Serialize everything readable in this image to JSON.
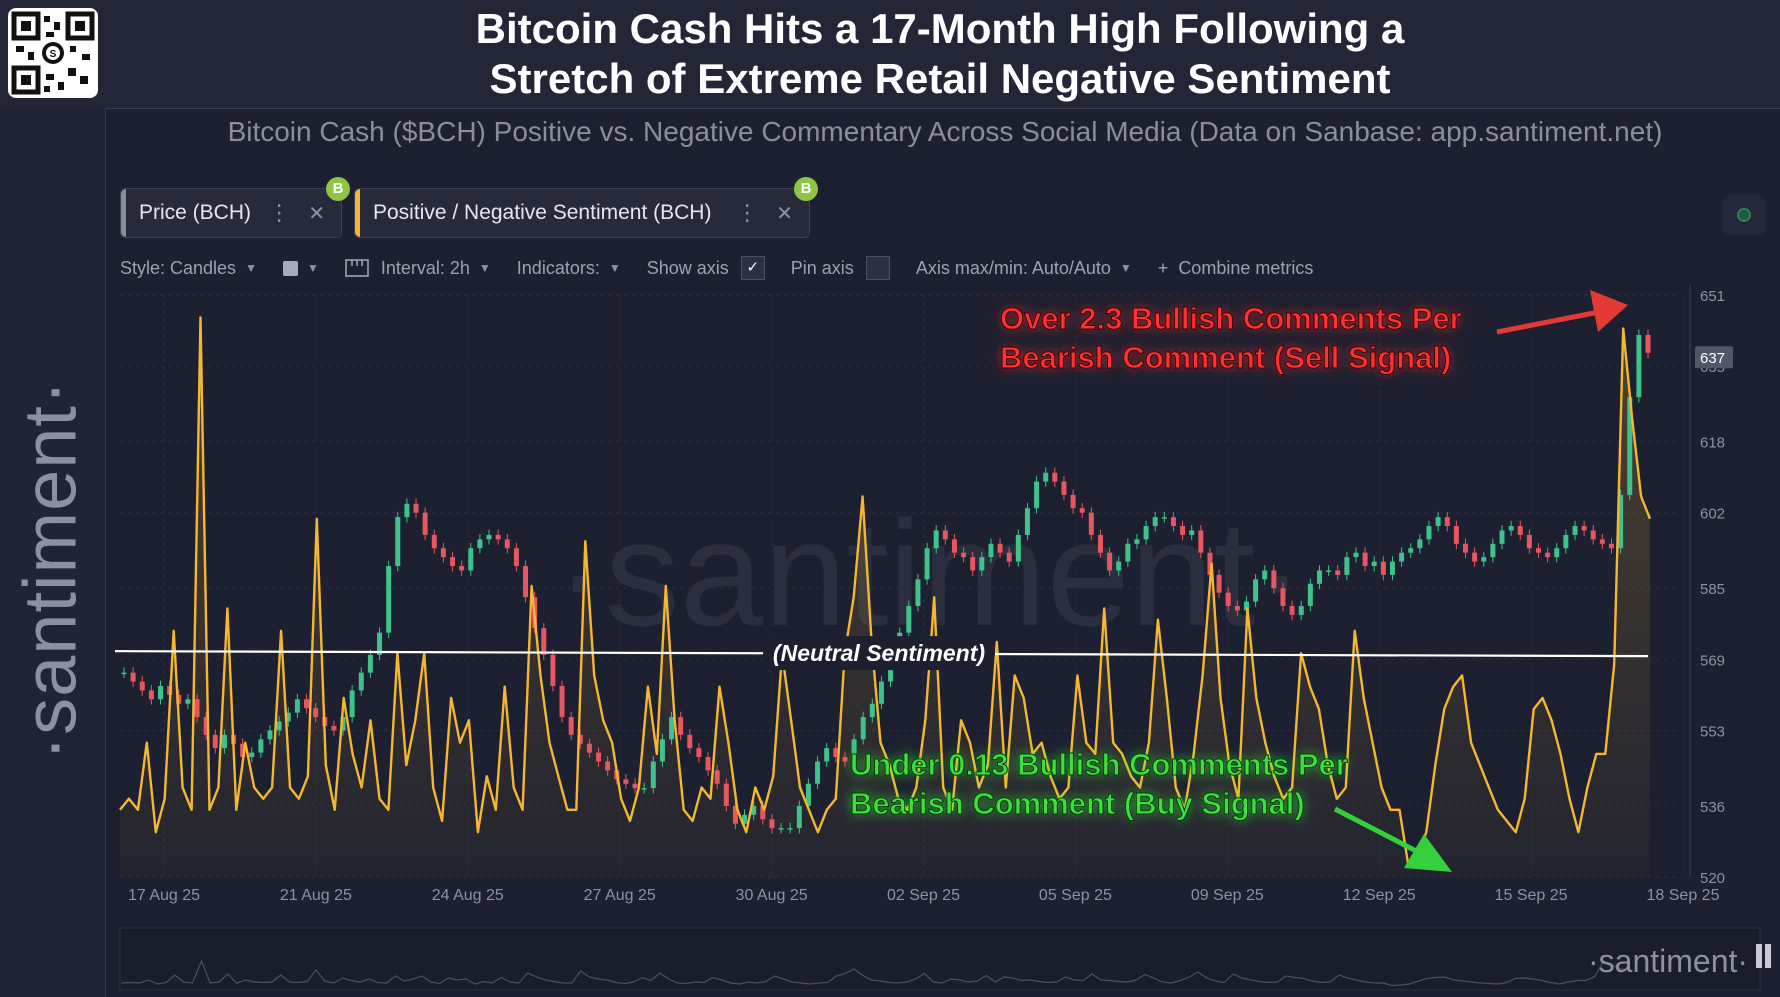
{
  "header": {
    "title_line1": "Bitcoin Cash Hits a 17-Month High Following a",
    "title_line2": "Stretch of Extreme Retail Negative Sentiment",
    "subtitle": "Bitcoin Cash ($BCH) Positive vs. Negative Commentary Across Social Media (Data on Sanbase: app.santiment.net)",
    "qr_icon": "qr-code-icon"
  },
  "sidebar": {
    "logo": "·santiment·"
  },
  "metrics": [
    {
      "label": "Price (BCH)",
      "color": "#8a8f9c",
      "badge": "B"
    },
    {
      "label": "Positive / Negative Sentiment (BCH)",
      "color": "#f5b731",
      "badge": "B"
    }
  ],
  "toolbar": {
    "style": "Style: Candles",
    "interval": "Interval: 2h",
    "indicators": "Indicators:",
    "show_axis": "Show axis",
    "pin_axis": "Pin axis",
    "axis_maxmin": "Axis max/min: Auto/Auto",
    "combine": "Combine metrics",
    "plus": "+",
    "check": "✓"
  },
  "chart_data": {
    "type": "line",
    "title": "Bitcoin Cash Hits a 17-Month High Following a Stretch of Extreme Retail Negative Sentiment",
    "x_tick_labels": [
      "17 Aug 25",
      "21 Aug 25",
      "24 Aug 25",
      "27 Aug 25",
      "30 Aug 25",
      "02 Sep 25",
      "05 Sep 25",
      "09 Sep 25",
      "12 Sep 25",
      "15 Sep 25",
      "18 Sep 25"
    ],
    "y_axis": {
      "ticks": [
        651,
        635,
        618,
        602,
        585,
        569,
        553,
        536,
        520
      ],
      "range": [
        520,
        651
      ],
      "current_price_label": "637"
    },
    "series": [
      {
        "name": "Price (BCH)",
        "style": "candles",
        "color_up": "#3fc28c",
        "color_down": "#e8575f",
        "values": [
          566,
          564,
          562,
          560,
          563,
          561,
          559,
          560,
          556,
          552,
          549,
          552,
          550,
          547,
          548,
          551,
          553,
          555,
          557,
          560,
          558,
          556,
          554,
          553,
          556,
          562,
          566,
          570,
          575,
          590,
          601,
          604,
          602,
          597,
          594,
          592,
          590,
          589,
          594,
          596,
          597,
          596,
          594,
          590,
          583,
          576,
          570,
          563,
          556,
          552,
          550,
          548,
          546,
          544,
          542,
          541,
          540,
          540,
          546,
          551,
          556,
          552,
          549,
          547,
          544,
          541,
          536,
          532,
          534,
          536,
          533,
          531,
          531,
          531,
          536,
          541,
          546,
          549,
          547,
          546,
          551,
          556,
          559,
          564,
          569,
          575,
          581,
          587,
          594,
          598,
          596,
          593,
          592,
          589,
          592,
          595,
          593,
          591,
          597,
          603,
          609,
          611,
          609,
          606,
          603,
          602,
          597,
          593,
          589,
          591,
          595,
          596,
          599,
          601,
          601,
          599,
          597,
          598,
          593,
          588,
          584,
          581,
          580,
          582,
          587,
          589,
          585,
          581,
          579,
          581,
          586,
          589,
          589,
          588,
          592,
          593,
          590,
          591,
          588,
          591,
          593,
          594,
          596,
          599,
          601,
          599,
          595,
          593,
          591,
          592,
          595,
          598,
          599,
          597,
          594,
          593,
          592,
          594,
          597,
          599,
          598,
          596,
          595,
          594,
          606,
          628,
          642,
          638
        ]
      },
      {
        "name": "Positive / Negative Sentiment (BCH)",
        "style": "line-area",
        "color": "#f5b731",
        "neutral_line": 1.0,
        "range": [
          0.0,
          2.6
        ],
        "values": [
          0.3,
          0.35,
          0.3,
          0.6,
          0.2,
          0.35,
          1.1,
          0.4,
          0.3,
          2.5,
          0.3,
          0.4,
          1.2,
          0.3,
          0.6,
          0.4,
          0.35,
          0.4,
          1.1,
          0.4,
          0.35,
          0.45,
          1.6,
          0.5,
          0.3,
          0.8,
          0.55,
          0.4,
          0.7,
          0.35,
          0.3,
          1.0,
          0.5,
          0.7,
          1.0,
          0.4,
          0.25,
          0.8,
          0.6,
          0.7,
          0.2,
          0.45,
          0.3,
          0.85,
          0.4,
          0.3,
          1.3,
          0.9,
          0.6,
          0.45,
          0.3,
          0.3,
          1.5,
          0.9,
          0.7,
          0.6,
          0.35,
          0.25,
          0.4,
          0.85,
          0.55,
          1.3,
          0.7,
          0.3,
          0.25,
          0.4,
          0.35,
          0.85,
          0.6,
          0.3,
          0.2,
          0.4,
          0.3,
          0.45,
          1.0,
          0.7,
          0.4,
          0.3,
          0.2,
          0.3,
          0.35,
          1.0,
          1.25,
          1.7,
          1.05,
          0.6,
          0.5,
          0.35,
          0.3,
          0.4,
          0.7,
          1.25,
          0.4,
          0.3,
          0.7,
          0.6,
          0.4,
          0.5,
          1.05,
          0.4,
          0.9,
          0.8,
          0.55,
          0.6,
          0.45,
          0.35,
          0.4,
          0.9,
          0.6,
          0.55,
          1.2,
          0.6,
          0.55,
          0.45,
          0.4,
          0.6,
          1.15,
          0.8,
          0.4,
          0.3,
          0.55,
          0.9,
          1.4,
          0.8,
          0.5,
          0.35,
          1.2,
          0.8,
          0.6,
          0.45,
          0.35,
          0.4,
          1.0,
          0.85,
          0.75,
          0.5,
          0.35,
          0.4,
          1.1,
          0.8,
          0.6,
          0.4,
          0.3,
          0.3,
          0.05,
          0.1,
          0.2,
          0.5,
          0.75,
          0.85,
          0.9,
          0.6,
          0.5,
          0.4,
          0.3,
          0.25,
          0.2,
          0.35,
          0.75,
          0.8,
          0.7,
          0.55,
          0.35,
          0.2,
          0.4,
          0.55,
          0.55,
          0.95,
          2.45,
          2.05,
          1.7,
          1.6
        ]
      }
    ],
    "annotations": [
      {
        "text_line1": "Over 2.3 Bullish Comments Per",
        "text_line2": "Bearish Comment (Sell Signal)",
        "color": "#e53935",
        "arrow": "arrow-right-icon"
      },
      {
        "text_line1": "Under 0.13 Bullish Comments Per",
        "text_line2": "Bearish Comment (Buy Signal)",
        "color": "#34d13c",
        "arrow": "arrow-down-right-icon"
      },
      {
        "text": "(Neutral Sentiment)",
        "color": "#ffffff"
      }
    ],
    "watermark": "·santiment·",
    "navigator_logo": "·santiment·",
    "grid": true,
    "legend": "top-left"
  }
}
